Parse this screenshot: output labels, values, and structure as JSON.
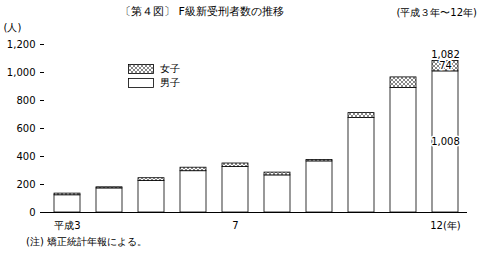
{
  "chart_data": {
    "type": "bar",
    "stacked": true,
    "title": "〔第４図〕 F級新受刑者数の推移",
    "subtitle": "(平成３年〜12年)",
    "y_label": "(人)",
    "note": "(注) 矯正統計年報による。",
    "categories": [
      "平成3",
      null,
      null,
      null,
      "7",
      null,
      null,
      null,
      null,
      "12(年)"
    ],
    "series": [
      {
        "name": "男子",
        "color": "#ffffff",
        "values": [
          123,
          172,
          225,
          295,
          325,
          265,
          365,
          675,
          890,
          1008
        ],
        "value_labels": [
          null,
          null,
          null,
          null,
          null,
          null,
          null,
          null,
          null,
          "1,008"
        ]
      },
      {
        "name": "女子",
        "color": "#555555",
        "values": [
          12,
          8,
          20,
          25,
          25,
          20,
          10,
          35,
          75,
          74
        ],
        "value_labels": [
          null,
          null,
          null,
          null,
          null,
          null,
          null,
          null,
          null,
          "74"
        ]
      }
    ],
    "annotations": [
      {
        "text": "1,082",
        "category": "12(年)",
        "value": 1082
      }
    ],
    "data_labels": true,
    "legend": "upper left",
    "ylim": [
      0,
      1200
    ],
    "yticks": [
      0,
      200,
      400,
      600,
      800,
      {
        "value": 1000,
        "label": "1,000"
      },
      {
        "value": 1200,
        "label": "1,200"
      }
    ],
    "grid": false
  }
}
